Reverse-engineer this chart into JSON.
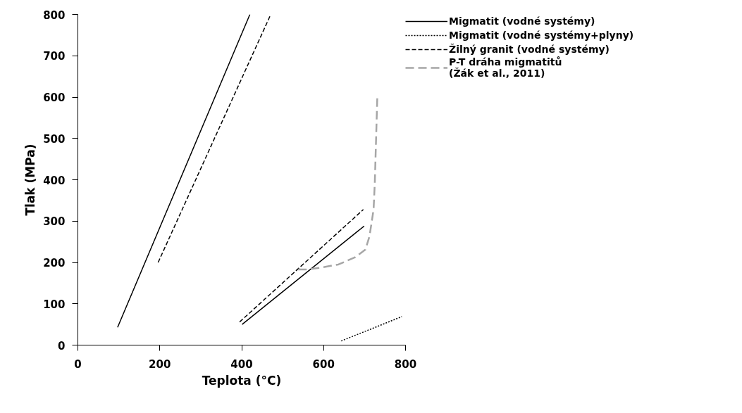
{
  "chart_data": {
    "type": "line",
    "xlabel": "Teplota (°C)",
    "ylabel": "Tlak (MPa)",
    "xlim": [
      0,
      800
    ],
    "ylim": [
      0,
      800
    ],
    "xticks": [
      0,
      200,
      400,
      600,
      800
    ],
    "yticks": [
      0,
      100,
      200,
      300,
      400,
      500,
      600,
      700,
      800
    ],
    "grid": false,
    "legend": "top right",
    "series": [
      {
        "name": "Migmatit (vodné systémy)",
        "color": "#000000",
        "line_style": "solid",
        "x": [
          97,
          420,
          null,
          401,
          699
        ],
        "values": [
          43,
          800,
          null,
          50,
          288
        ]
      },
      {
        "name": "Migmatit (vodné systémy+plyny)",
        "color": "#000000",
        "line_style": "dotted",
        "x": [
          643,
          791
        ],
        "values": [
          10,
          69
        ]
      },
      {
        "name": "Žilný granit (vodné systémy)",
        "color": "#000000",
        "line_style": "dashed",
        "x": [
          196,
          471,
          null,
          395,
          697
        ],
        "values": [
          200,
          800,
          null,
          56,
          328
        ]
      },
      {
        "name": "P-T dráha migmatitů\n(Žák et al., 2011)",
        "color": "#a6a6a6",
        "line_style": "dashed",
        "x": [
          731,
          725,
          722,
          712,
          702,
          676,
          636,
          590,
          557,
          537
        ],
        "values": [
          597,
          393,
          328,
          263,
          231,
          212,
          195,
          187,
          183,
          183
        ]
      }
    ]
  }
}
